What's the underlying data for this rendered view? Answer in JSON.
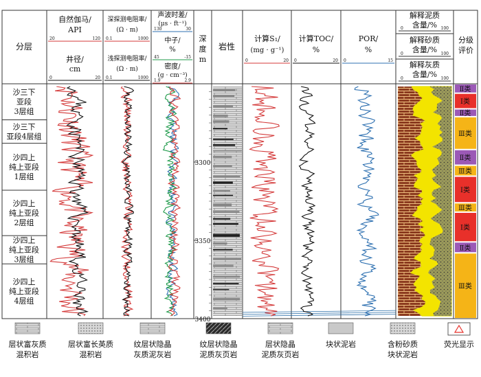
{
  "chart_data": {
    "type": "well-log",
    "depth": {
      "unit": "m",
      "range": [
        3250,
        3400
      ],
      "ticks": [
        3300,
        3350,
        3400
      ]
    },
    "headers": {
      "layer": "分层",
      "depth": "深度/m",
      "lithology": "岩性",
      "grading": "分级评价"
    },
    "tracks": [
      {
        "id": "track1",
        "curves": [
          {
            "name": "自然伽马/API",
            "min": "20",
            "max": "120",
            "color": "#d43a3a"
          },
          {
            "name": "井径/cm",
            "min": "0",
            "max": "20",
            "color": "#111111"
          }
        ]
      },
      {
        "id": "track2",
        "curves": [
          {
            "name": "深探测电阻率/(Ω · m)",
            "min": "0.1",
            "max": "1000",
            "color": "#d43a3a"
          },
          {
            "name": "浅探测电阻率/(Ω · m)",
            "min": "0.1",
            "max": "1000",
            "color": "#111111"
          }
        ]
      },
      {
        "id": "track3",
        "curves": [
          {
            "name": "声波时差/(μs · ft⁻¹)",
            "min": "130",
            "max": "30",
            "color": "#2c6fb0"
          },
          {
            "name": "中子/%",
            "min": "45",
            "max": "-15",
            "color": "#1f9a4a"
          },
          {
            "name": "密度/(g · cm⁻³)",
            "min": "1.9",
            "max": "2.9",
            "color": "#d43a3a"
          }
        ]
      },
      {
        "id": "track5",
        "curves": [
          {
            "name": "计算S₁/(mg · g⁻¹)",
            "min": "0",
            "max": "20",
            "color": "#d43a3a"
          }
        ]
      },
      {
        "id": "track6",
        "curves": [
          {
            "name": "计算TOC/%",
            "min": "0",
            "max": "20",
            "color": "#111111"
          }
        ]
      },
      {
        "id": "track7",
        "curves": [
          {
            "name": "POR/%",
            "min": "0",
            "max": "15",
            "color": "#2c6fb0"
          }
        ]
      },
      {
        "id": "track8",
        "curves": [
          {
            "name": "解释泥质含量/%",
            "min": "0",
            "max": "100"
          },
          {
            "name": "解释砂质含量/%",
            "min": "0",
            "max": "100"
          },
          {
            "name": "解释灰质含量/%",
            "min": "0",
            "max": "100"
          }
        ]
      }
    ],
    "layers": [
      {
        "label": "沙三下亚段3层组",
        "top": 3250,
        "bottom": 3273
      },
      {
        "label": "沙三下亚段4层组",
        "top": 3273,
        "bottom": 3288
      },
      {
        "label": "沙四上纯上亚段1层组",
        "top": 3288,
        "bottom": 3318
      },
      {
        "label": "沙四上纯上亚段2层组",
        "top": 3318,
        "bottom": 3347
      },
      {
        "label": "沙四上纯上亚段3层组",
        "top": 3347,
        "bottom": 3365
      },
      {
        "label": "沙四上纯上亚段4层组",
        "top": 3365,
        "bottom": 3400
      }
    ],
    "grades": [
      {
        "label": "Ⅱ类",
        "top": 3250,
        "bottom": 3256,
        "color": "#9b59b6"
      },
      {
        "label": "Ⅰ类",
        "top": 3256,
        "bottom": 3266,
        "color": "#e8302a"
      },
      {
        "label": "Ⅱ类",
        "top": 3266,
        "bottom": 3271,
        "color": "#9b59b6"
      },
      {
        "label": "Ⅲ类",
        "top": 3271,
        "bottom": 3292,
        "color": "#f5b417"
      },
      {
        "label": "Ⅱ类",
        "top": 3292,
        "bottom": 3302,
        "color": "#9b59b6"
      },
      {
        "label": "Ⅲ类",
        "top": 3302,
        "bottom": 3309,
        "color": "#f5b417"
      },
      {
        "label": "Ⅰ类",
        "top": 3309,
        "bottom": 3326,
        "color": "#e8302a"
      },
      {
        "label": "Ⅲ类",
        "top": 3326,
        "bottom": 3332,
        "color": "#f5b417"
      },
      {
        "label": "Ⅰ类",
        "top": 3332,
        "bottom": 3351,
        "color": "#e8302a"
      },
      {
        "label": "Ⅱ类",
        "top": 3351,
        "bottom": 3358,
        "color": "#9b59b6"
      },
      {
        "label": "Ⅲ类",
        "top": 3358,
        "bottom": 3400,
        "color": "#f5b417"
      }
    ],
    "legend": [
      {
        "label": "层状富灰质混积岩",
        "pattern": "layered-lime"
      },
      {
        "label": "层状富长英质混积岩",
        "pattern": "layered-felsic"
      },
      {
        "label": "纹层状隐晶灰质泥灰岩",
        "pattern": "laminated-marl"
      },
      {
        "label": "纹层状隐晶泥质灰页岩",
        "pattern": "laminated-shale"
      },
      {
        "label": "层状隐晶泥质灰页岩",
        "pattern": "layered-shale"
      },
      {
        "label": "块状泥岩",
        "pattern": "massive-mudstone"
      },
      {
        "label": "含粉砂质块状泥岩",
        "pattern": "silty-mudstone"
      },
      {
        "label": "荧光显示",
        "pattern": "fluorescence"
      }
    ]
  }
}
